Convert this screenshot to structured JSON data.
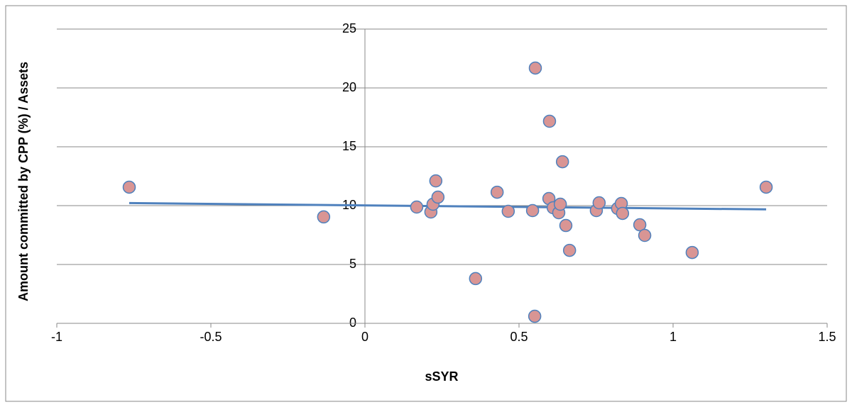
{
  "chart_data": {
    "type": "scatter",
    "x_label": "sSYR",
    "y_label": "Amount committed by CPP (%) / Assets",
    "xlim": [
      -1,
      1.5
    ],
    "xticks": [
      -1,
      -0.5,
      0,
      0.5,
      1,
      1.5
    ],
    "ylim": [
      0,
      25
    ],
    "yticks": [
      0,
      5,
      10,
      15,
      20,
      25
    ],
    "grid": true,
    "series": [
      {
        "color": "#d99594",
        "x": [
          -0.765,
          -0.134,
          0.168,
          0.214,
          0.221,
          0.23,
          0.237,
          0.359,
          0.429,
          0.465,
          0.544,
          0.551,
          0.599,
          0.597,
          0.611,
          0.629,
          0.634,
          0.641,
          0.652,
          0.664,
          0.553,
          0.751,
          0.76,
          0.82,
          0.832,
          0.836,
          0.892,
          0.908,
          1.062,
          1.302
        ],
        "values": [
          11.57,
          9.04,
          9.88,
          9.46,
          10.12,
          12.1,
          10.72,
          3.8,
          11.14,
          9.52,
          9.58,
          0.6,
          17.17,
          10.6,
          9.82,
          9.4,
          10.12,
          13.73,
          8.31,
          6.2,
          21.69,
          9.58,
          10.24,
          9.76,
          10.18,
          9.34,
          8.37,
          7.47,
          6.02,
          11.57
        ]
      }
    ],
    "trendline": {
      "color": "#4f81bd",
      "x": [
        -0.765,
        1.302
      ],
      "values": [
        10.22,
        9.68
      ]
    }
  }
}
